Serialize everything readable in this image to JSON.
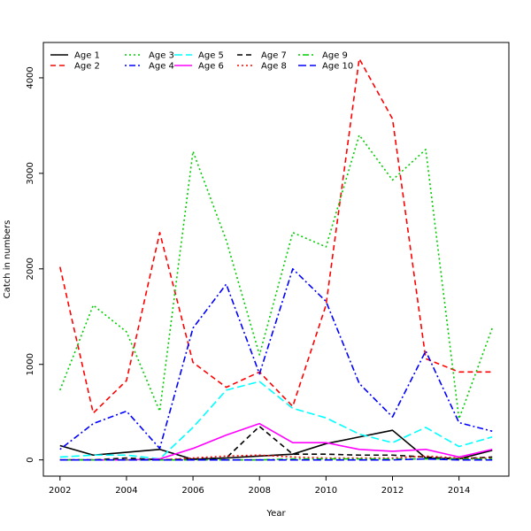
{
  "chart_data": {
    "type": "line",
    "title": "",
    "xlabel": "Year",
    "ylabel": "Catch in numbers",
    "xlim": [
      2001.5,
      2015.5
    ],
    "ylim": [
      -170,
      4370
    ],
    "x_ticks": [
      2002,
      2004,
      2006,
      2008,
      2010,
      2012,
      2014
    ],
    "y_ticks": [
      0,
      1000,
      2000,
      3000,
      4000
    ],
    "grid": false,
    "legend_position": "top-left",
    "x": [
      2002,
      2003,
      2004,
      2005,
      2006,
      2007,
      2008,
      2009,
      2010,
      2011,
      2012,
      2013,
      2014,
      2015
    ],
    "series": [
      {
        "name": "Age 1",
        "color": "#000000",
        "dash": "solid",
        "values": [
          150,
          50,
          80,
          110,
          5,
          20,
          40,
          60,
          170,
          240,
          310,
          20,
          10,
          100
        ]
      },
      {
        "name": "Age 2",
        "color": "#ff0000",
        "dash": "dashed",
        "values": [
          2020,
          490,
          830,
          2380,
          1020,
          760,
          920,
          560,
          1620,
          4200,
          3570,
          1060,
          920,
          920
        ]
      },
      {
        "name": "Age 3",
        "color": "#00cd00",
        "dash": "dotted",
        "values": [
          730,
          1620,
          1340,
          510,
          3230,
          2300,
          1100,
          2380,
          2230,
          3400,
          2930,
          3250,
          430,
          1380
        ]
      },
      {
        "name": "Age 4",
        "color": "#0000ff",
        "dash": "dotdash",
        "values": [
          110,
          380,
          510,
          120,
          1380,
          1840,
          900,
          2000,
          1660,
          800,
          450,
          1140,
          390,
          300
        ]
      },
      {
        "name": "Age 5",
        "color": "#00ffff",
        "dash": "longdash",
        "values": [
          30,
          50,
          50,
          10,
          340,
          730,
          820,
          540,
          440,
          270,
          180,
          340,
          140,
          240
        ]
      },
      {
        "name": "Age 6",
        "color": "#ff00ff",
        "dash": "solid",
        "values": [
          0,
          0,
          0,
          10,
          120,
          260,
          380,
          180,
          180,
          110,
          90,
          110,
          30,
          110
        ]
      },
      {
        "name": "Age 7",
        "color": "#000000",
        "dash": "dashed",
        "values": [
          0,
          0,
          20,
          0,
          10,
          20,
          350,
          60,
          60,
          50,
          50,
          30,
          10,
          30
        ]
      },
      {
        "name": "Age 8",
        "color": "#ff0000",
        "dash": "dotted",
        "values": [
          0,
          0,
          0,
          0,
          20,
          40,
          50,
          30,
          20,
          20,
          20,
          40,
          20,
          20
        ]
      },
      {
        "name": "Age 9",
        "color": "#00cd00",
        "dash": "dotdash",
        "values": [
          0,
          0,
          0,
          0,
          0,
          0,
          0,
          10,
          10,
          10,
          10,
          10,
          10,
          10
        ]
      },
      {
        "name": "Age 10",
        "color": "#0000ff",
        "dash": "longdash",
        "values": [
          0,
          0,
          0,
          0,
          0,
          0,
          0,
          0,
          0,
          0,
          0,
          10,
          0,
          0
        ]
      }
    ]
  }
}
